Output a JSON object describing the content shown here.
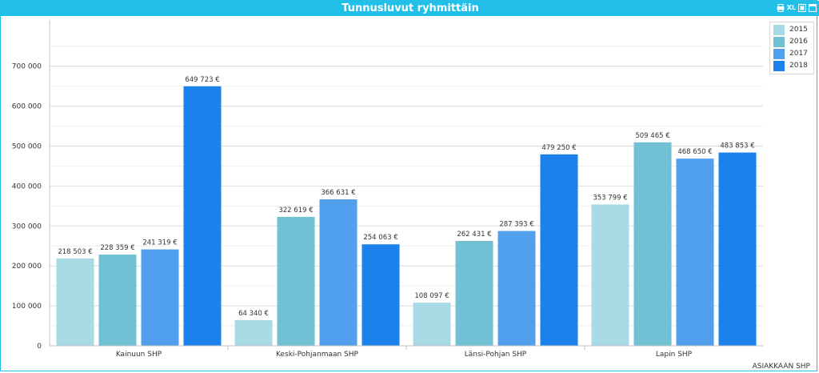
{
  "window": {
    "title": "Tunnusluvut ryhmittäin",
    "tools": [
      {
        "name": "print-icon",
        "label": ""
      },
      {
        "name": "excel-export-button",
        "label": "XL"
      },
      {
        "name": "export-icon",
        "label": ""
      },
      {
        "name": "maximize-icon",
        "label": ""
      }
    ]
  },
  "chart_data": {
    "type": "bar",
    "title": "",
    "xlabel": "ASIAKKAAN SHP",
    "ylabel": "",
    "ylim": [
      0,
      800000
    ],
    "yticks": [
      0,
      100000,
      200000,
      300000,
      400000,
      500000,
      600000,
      700000
    ],
    "ytick_labels": [
      "0",
      "100 000",
      "200 000",
      "300 000",
      "400 000",
      "500 000",
      "600 000",
      "700 000"
    ],
    "grid": true,
    "legend_position": "top-right",
    "categories": [
      "Kainuun SHP",
      "Keski-Pohjanmaan SHP",
      "Länsi-Pohjan SHP",
      "Lapin SHP"
    ],
    "series": [
      {
        "name": "2015",
        "color": "#a8dbe6",
        "values": [
          218503,
          64340,
          108097,
          353799
        ],
        "labels": [
          "218 503 €",
          "64 340 €",
          "108 097 €",
          "353 799 €"
        ]
      },
      {
        "name": "2016",
        "color": "#72c0d4",
        "values": [
          228359,
          322619,
          262431,
          509465
        ],
        "labels": [
          "228 359 €",
          "322 619 €",
          "262 431 €",
          "509 465 €"
        ]
      },
      {
        "name": "2017",
        "color": "#50a0ee",
        "values": [
          241319,
          366631,
          287393,
          468650
        ],
        "labels": [
          "241 319 €",
          "366 631 €",
          "287 393 €",
          "468 650 €"
        ]
      },
      {
        "name": "2018",
        "color": "#1a82ea",
        "values": [
          649723,
          254063,
          479250,
          483853
        ],
        "labels": [
          "649 723 €",
          "254 063 €",
          "479 250 €",
          "483 853 €"
        ]
      }
    ]
  }
}
